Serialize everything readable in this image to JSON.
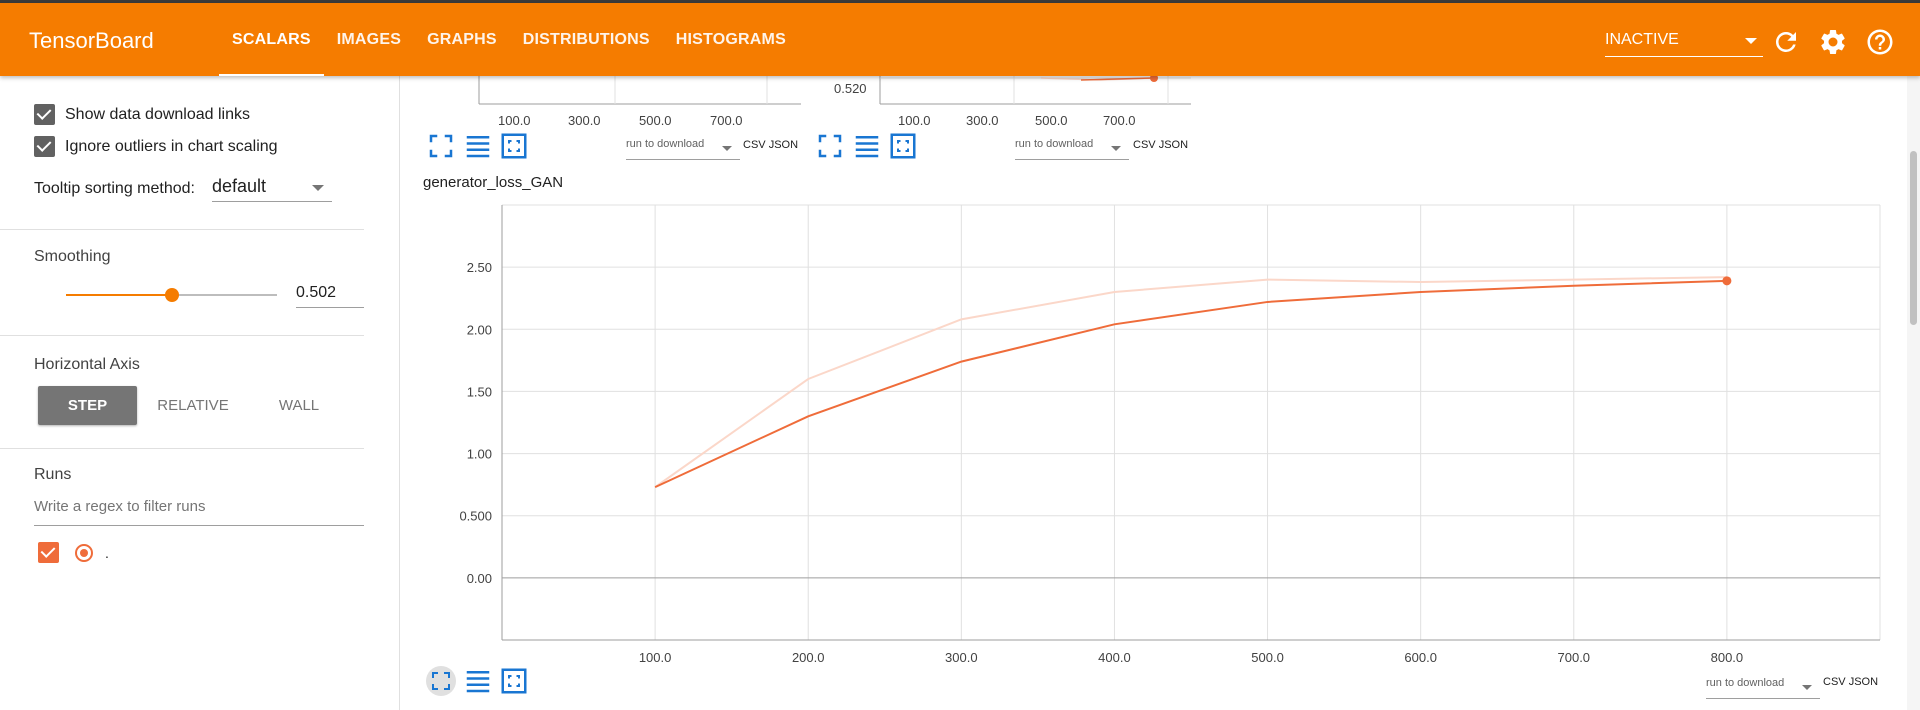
{
  "header": {
    "brand": "TensorBoard",
    "tabs": [
      {
        "label": "SCALARS",
        "active": true
      },
      {
        "label": "IMAGES"
      },
      {
        "label": "GRAPHS"
      },
      {
        "label": "DISTRIBUTIONS"
      },
      {
        "label": "HISTOGRAMS"
      }
    ],
    "status": "INACTIVE",
    "icons": [
      "refresh-icon",
      "gear-icon",
      "help-icon"
    ]
  },
  "sidebar": {
    "show_download_links": "Show data download links",
    "ignore_outliers": "Ignore outliers in chart scaling",
    "tooltip_label": "Tooltip sorting method:",
    "tooltip_value": "default",
    "smoothing_label": "Smoothing",
    "smoothing_value": "0.502",
    "smoothing_fraction": 0.502,
    "haxis_label": "Horizontal Axis",
    "haxis_options": [
      "STEP",
      "RELATIVE",
      "WALL"
    ],
    "runs_label": "Runs",
    "runs_filter_placeholder": "Write a regex to filter runs",
    "run_name": "."
  },
  "partial_charts": {
    "y_tick": "0.520",
    "x_ticks": [
      "100.0",
      "300.0",
      "500.0",
      "700.0"
    ],
    "download_select": "run to download",
    "csv": "CSV",
    "json": "JSON"
  },
  "main_chart": {
    "download_select": "run to download",
    "csv": "CSV",
    "json": "JSON"
  },
  "colors": {
    "accent": "#f57c00",
    "series": "#ef6c3a",
    "series_raw": "#fbd7c9"
  },
  "chart_data": {
    "type": "line",
    "title": "generator_loss_GAN",
    "xlabel": "",
    "ylabel": "",
    "xlim": [
      0,
      900
    ],
    "ylim": [
      -0.5,
      3.0
    ],
    "x_ticks": [
      100,
      200,
      300,
      400,
      500,
      600,
      700,
      800
    ],
    "x_tick_labels": [
      "100.0",
      "200.0",
      "300.0",
      "400.0",
      "500.0",
      "600.0",
      "700.0",
      "800.0"
    ],
    "y_ticks": [
      0,
      0.5,
      1.0,
      1.5,
      2.0,
      2.5
    ],
    "y_tick_labels": [
      "0.00",
      "0.500",
      "1.00",
      "1.50",
      "2.00",
      "2.50"
    ],
    "grid": true,
    "series": [
      {
        "x": [
          100,
          200,
          300,
          400,
          500,
          600,
          700,
          800
        ],
        "values": [
          0.73,
          1.3,
          1.74,
          2.04,
          2.22,
          2.3,
          2.35,
          2.39
        ]
      },
      {
        "x": [
          100,
          200,
          300,
          400,
          500,
          600,
          700,
          800
        ],
        "values": [
          0.73,
          1.6,
          2.08,
          2.3,
          2.4,
          2.38,
          2.4,
          2.42
        ]
      }
    ]
  }
}
